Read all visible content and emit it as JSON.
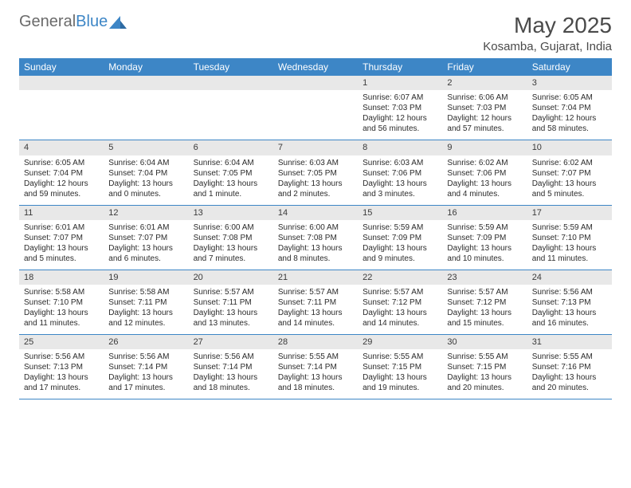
{
  "logo": {
    "text1": "General",
    "text2": "Blue"
  },
  "title": "May 2025",
  "location": "Kosamba, Gujarat, India",
  "colors": {
    "header_bar": "#3d86c6",
    "header_text": "#ffffff",
    "daynum_bg": "#e8e8e8",
    "text": "#2b2b2b",
    "rule": "#3d86c6"
  },
  "dow": [
    "Sunday",
    "Monday",
    "Tuesday",
    "Wednesday",
    "Thursday",
    "Friday",
    "Saturday"
  ],
  "weeks": [
    [
      null,
      null,
      null,
      null,
      {
        "n": "1",
        "sr": "6:07 AM",
        "ss": "7:03 PM",
        "dl": "12 hours and 56 minutes."
      },
      {
        "n": "2",
        "sr": "6:06 AM",
        "ss": "7:03 PM",
        "dl": "12 hours and 57 minutes."
      },
      {
        "n": "3",
        "sr": "6:05 AM",
        "ss": "7:04 PM",
        "dl": "12 hours and 58 minutes."
      }
    ],
    [
      {
        "n": "4",
        "sr": "6:05 AM",
        "ss": "7:04 PM",
        "dl": "12 hours and 59 minutes."
      },
      {
        "n": "5",
        "sr": "6:04 AM",
        "ss": "7:04 PM",
        "dl": "13 hours and 0 minutes."
      },
      {
        "n": "6",
        "sr": "6:04 AM",
        "ss": "7:05 PM",
        "dl": "13 hours and 1 minute."
      },
      {
        "n": "7",
        "sr": "6:03 AM",
        "ss": "7:05 PM",
        "dl": "13 hours and 2 minutes."
      },
      {
        "n": "8",
        "sr": "6:03 AM",
        "ss": "7:06 PM",
        "dl": "13 hours and 3 minutes."
      },
      {
        "n": "9",
        "sr": "6:02 AM",
        "ss": "7:06 PM",
        "dl": "13 hours and 4 minutes."
      },
      {
        "n": "10",
        "sr": "6:02 AM",
        "ss": "7:07 PM",
        "dl": "13 hours and 5 minutes."
      }
    ],
    [
      {
        "n": "11",
        "sr": "6:01 AM",
        "ss": "7:07 PM",
        "dl": "13 hours and 5 minutes."
      },
      {
        "n": "12",
        "sr": "6:01 AM",
        "ss": "7:07 PM",
        "dl": "13 hours and 6 minutes."
      },
      {
        "n": "13",
        "sr": "6:00 AM",
        "ss": "7:08 PM",
        "dl": "13 hours and 7 minutes."
      },
      {
        "n": "14",
        "sr": "6:00 AM",
        "ss": "7:08 PM",
        "dl": "13 hours and 8 minutes."
      },
      {
        "n": "15",
        "sr": "5:59 AM",
        "ss": "7:09 PM",
        "dl": "13 hours and 9 minutes."
      },
      {
        "n": "16",
        "sr": "5:59 AM",
        "ss": "7:09 PM",
        "dl": "13 hours and 10 minutes."
      },
      {
        "n": "17",
        "sr": "5:59 AM",
        "ss": "7:10 PM",
        "dl": "13 hours and 11 minutes."
      }
    ],
    [
      {
        "n": "18",
        "sr": "5:58 AM",
        "ss": "7:10 PM",
        "dl": "13 hours and 11 minutes."
      },
      {
        "n": "19",
        "sr": "5:58 AM",
        "ss": "7:11 PM",
        "dl": "13 hours and 12 minutes."
      },
      {
        "n": "20",
        "sr": "5:57 AM",
        "ss": "7:11 PM",
        "dl": "13 hours and 13 minutes."
      },
      {
        "n": "21",
        "sr": "5:57 AM",
        "ss": "7:11 PM",
        "dl": "13 hours and 14 minutes."
      },
      {
        "n": "22",
        "sr": "5:57 AM",
        "ss": "7:12 PM",
        "dl": "13 hours and 14 minutes."
      },
      {
        "n": "23",
        "sr": "5:57 AM",
        "ss": "7:12 PM",
        "dl": "13 hours and 15 minutes."
      },
      {
        "n": "24",
        "sr": "5:56 AM",
        "ss": "7:13 PM",
        "dl": "13 hours and 16 minutes."
      }
    ],
    [
      {
        "n": "25",
        "sr": "5:56 AM",
        "ss": "7:13 PM",
        "dl": "13 hours and 17 minutes."
      },
      {
        "n": "26",
        "sr": "5:56 AM",
        "ss": "7:14 PM",
        "dl": "13 hours and 17 minutes."
      },
      {
        "n": "27",
        "sr": "5:56 AM",
        "ss": "7:14 PM",
        "dl": "13 hours and 18 minutes."
      },
      {
        "n": "28",
        "sr": "5:55 AM",
        "ss": "7:14 PM",
        "dl": "13 hours and 18 minutes."
      },
      {
        "n": "29",
        "sr": "5:55 AM",
        "ss": "7:15 PM",
        "dl": "13 hours and 19 minutes."
      },
      {
        "n": "30",
        "sr": "5:55 AM",
        "ss": "7:15 PM",
        "dl": "13 hours and 20 minutes."
      },
      {
        "n": "31",
        "sr": "5:55 AM",
        "ss": "7:16 PM",
        "dl": "13 hours and 20 minutes."
      }
    ]
  ],
  "labels": {
    "sunrise": "Sunrise:",
    "sunset": "Sunset:",
    "daylight": "Daylight:"
  }
}
